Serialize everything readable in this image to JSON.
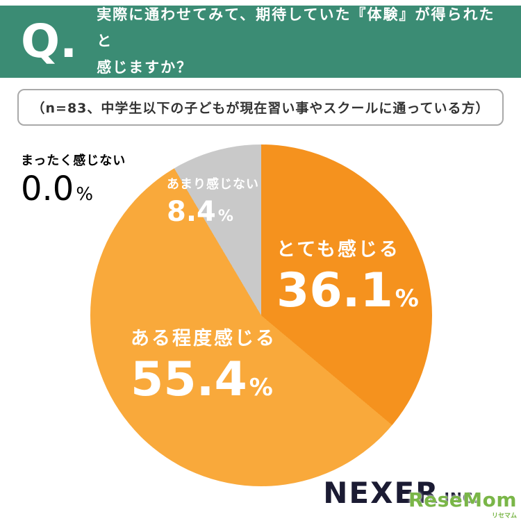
{
  "header": {
    "q_label": "Q.",
    "question_line1": "実際に通わせてみて、期待していた『体験』が得られたと",
    "question_line2": "感じますか？"
  },
  "subtitle": {
    "text": "（n=83、中学生以下の子どもが現在習い事やスクールに通っている方）"
  },
  "chart_data": {
    "type": "pie",
    "title": "実際に通わせてみて、期待していた『体験』が得られたと感じますか？",
    "sample_note": "n=83、中学生以下の子どもが現在習い事やスクールに通っている方",
    "unit": "%",
    "start_angle_deg": 0,
    "direction": "clockwise",
    "slices": [
      {
        "label": "とても感じる",
        "value": 36.1,
        "value_display": "36.1",
        "color": "#F5921E"
      },
      {
        "label": "ある程度感じる",
        "value": 55.4,
        "value_display": "55.4",
        "color": "#F9A93B"
      },
      {
        "label": "あまり感じない",
        "value": 8.4,
        "value_display": "8.4",
        "color": "#C9C9C9"
      },
      {
        "label": "まったく感じない",
        "value": 0,
        "value_display": "0.0"
      }
    ]
  },
  "footer": {
    "brand": "NEXER",
    "brand_suffix": "INC.",
    "watermark": "ReseMom",
    "watermark_sub": "リセマム"
  },
  "theme": {
    "header_green": "#3B8C74",
    "brand_dark": "#1B1B33",
    "watermark_green": "#7AB648",
    "note_border": "#A9A9A9"
  }
}
